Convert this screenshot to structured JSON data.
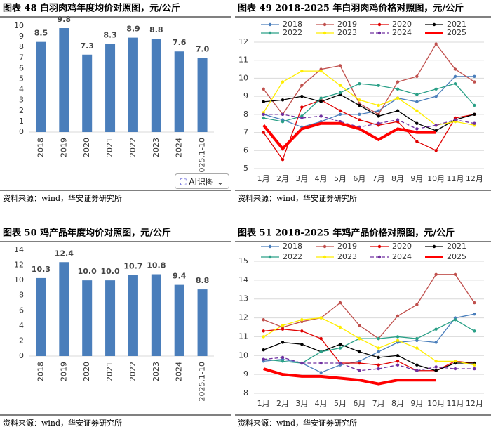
{
  "chart_data": [
    {
      "type": "bar",
      "title": "图表 48 白羽肉鸡年度均价对照图，元/公斤",
      "source": "资料来源：wind，华安证券研究所",
      "categories": [
        "2018",
        "2019",
        "2020",
        "2021",
        "2022",
        "2023",
        "2024",
        "2025.1-10"
      ],
      "values": [
        8.5,
        9.8,
        7.3,
        8.3,
        8.9,
        8.8,
        7.6,
        7.0
      ],
      "value_labels": [
        "8.5",
        "9.8",
        "7.3",
        "8.3",
        "8.9",
        "8.8",
        "7.6",
        "7.0"
      ],
      "color": "#4a7ebb",
      "ylim": [
        0,
        10
      ],
      "yticks": [
        0,
        1,
        2,
        3,
        4,
        5,
        6,
        7,
        8,
        9,
        10
      ],
      "grid": false
    },
    {
      "type": "line",
      "title": "图表 49 2018-2025 年白羽肉鸡价格对照图，元/公斤",
      "source": "资料来源：wind，华安证券研究所",
      "categories": [
        "1月",
        "2月",
        "3月",
        "4月",
        "5月",
        "6月",
        "7月",
        "8月",
        "9月",
        "10月",
        "11月",
        "12月"
      ],
      "ylim": [
        5,
        12
      ],
      "yticks": [
        5,
        6,
        7,
        8,
        9,
        10,
        11,
        12
      ],
      "grid": true,
      "series": [
        {
          "name": "2018",
          "color": "#4a7ebb",
          "marker": true,
          "values": [
            8.0,
            7.7,
            7.3,
            7.6,
            8.0,
            8.0,
            8.2,
            8.9,
            8.7,
            9.0,
            10.1,
            10.1
          ]
        },
        {
          "name": "2019",
          "color": "#c0504d",
          "marker": true,
          "values": [
            9.4,
            8.0,
            9.6,
            10.5,
            10.7,
            8.6,
            8.0,
            9.8,
            10.1,
            11.9,
            10.5,
            9.8
          ]
        },
        {
          "name": "2020",
          "color": "#e00000",
          "marker": true,
          "values": [
            7.0,
            5.5,
            8.4,
            8.8,
            8.2,
            7.7,
            7.4,
            7.6,
            6.5,
            6.0,
            7.8,
            8.0
          ]
        },
        {
          "name": "2021",
          "color": "#000000",
          "marker": true,
          "values": [
            8.7,
            8.8,
            9.0,
            8.7,
            9.1,
            8.5,
            7.9,
            8.2,
            7.5,
            7.1,
            7.7,
            8.0
          ]
        },
        {
          "name": "2022",
          "color": "#2aa087",
          "marker": true,
          "values": [
            7.8,
            7.6,
            7.9,
            8.9,
            9.2,
            9.7,
            9.6,
            9.4,
            9.1,
            9.4,
            9.7,
            8.5
          ]
        },
        {
          "name": "2023",
          "color": "#ffee00",
          "marker": true,
          "values": [
            8.1,
            9.8,
            10.4,
            10.4,
            9.6,
            8.8,
            8.5,
            8.9,
            8.2,
            7.4,
            7.6,
            7.4
          ]
        },
        {
          "name": "2024",
          "color": "#7030a0",
          "marker": true,
          "linestyle": "dashed",
          "values": [
            8.0,
            8.0,
            7.8,
            7.9,
            7.6,
            7.3,
            7.5,
            7.7,
            7.2,
            7.4,
            7.7,
            7.5
          ]
        },
        {
          "name": "2025",
          "color": "#ff0000",
          "marker": false,
          "linewidth": 4,
          "values": [
            7.4,
            6.1,
            7.2,
            7.5,
            7.5,
            7.2,
            6.6,
            7.2,
            7.0,
            7.0,
            null,
            null
          ]
        }
      ]
    },
    {
      "type": "bar",
      "title": "图表 50 鸡产品年度均价对照图，元/公斤",
      "source": "资料来源：wind，华安证券研究所",
      "categories": [
        "2018",
        "2019",
        "2020",
        "2021",
        "2022",
        "2023",
        "2024",
        "2025.1-10"
      ],
      "values": [
        10.3,
        12.4,
        10.0,
        10.0,
        10.7,
        10.8,
        9.4,
        8.8
      ],
      "value_labels": [
        "10.3",
        "12.4",
        "10.0",
        "10.0",
        "10.7",
        "10.8",
        "9.4",
        "8.8"
      ],
      "color": "#4a7ebb",
      "ylim": [
        0,
        14
      ],
      "yticks": [
        0,
        2,
        4,
        6,
        8,
        10,
        12,
        14
      ],
      "grid": false
    },
    {
      "type": "line",
      "title": "图表 51 2018-2025 年鸡产品价格对照图，元/公斤",
      "source": "资料来源：wind，华安证券研究所",
      "categories": [
        "1月",
        "2月",
        "3月",
        "4月",
        "5月",
        "6月",
        "7月",
        "8月",
        "9月",
        "10月",
        "11月",
        "12月"
      ],
      "ylim": [
        8,
        15
      ],
      "yticks": [
        8,
        9,
        10,
        11,
        12,
        13,
        14,
        15
      ],
      "grid": true,
      "series": [
        {
          "name": "2018",
          "color": "#4a7ebb",
          "marker": true,
          "values": [
            9.7,
            9.8,
            9.6,
            9.1,
            9.5,
            9.7,
            10.2,
            10.7,
            10.8,
            10.7,
            12.0,
            12.2
          ]
        },
        {
          "name": "2019",
          "color": "#c0504d",
          "marker": true,
          "values": [
            11.9,
            11.5,
            11.8,
            12.0,
            12.8,
            11.6,
            10.9,
            12.1,
            12.7,
            14.3,
            14.3,
            12.8
          ]
        },
        {
          "name": "2020",
          "color": "#e00000",
          "marker": true,
          "values": [
            11.3,
            11.4,
            11.3,
            10.9,
            9.6,
            9.6,
            9.5,
            9.7,
            9.2,
            9.2,
            9.7,
            9.6
          ]
        },
        {
          "name": "2021",
          "color": "#000000",
          "marker": true,
          "values": [
            10.3,
            10.7,
            10.6,
            10.2,
            10.6,
            10.2,
            9.9,
            10.0,
            9.5,
            9.2,
            9.6,
            9.6
          ]
        },
        {
          "name": "2022",
          "color": "#2aa087",
          "marker": true,
          "values": [
            9.8,
            9.7,
            9.6,
            10.2,
            10.4,
            10.9,
            10.9,
            11.0,
            10.9,
            11.4,
            11.9,
            11.3
          ]
        },
        {
          "name": "2023",
          "color": "#ffee00",
          "marker": true,
          "values": [
            11.0,
            11.6,
            11.9,
            12.0,
            11.5,
            10.9,
            10.4,
            10.8,
            10.4,
            9.7,
            9.7,
            9.5
          ]
        },
        {
          "name": "2024",
          "color": "#7030a0",
          "marker": true,
          "linestyle": "dashed",
          "values": [
            9.8,
            9.9,
            9.6,
            9.6,
            9.6,
            9.2,
            9.3,
            9.5,
            9.2,
            9.4,
            9.3,
            9.3
          ]
        },
        {
          "name": "2025",
          "color": "#ff0000",
          "marker": false,
          "linewidth": 4,
          "values": [
            9.3,
            9.0,
            8.9,
            8.9,
            8.8,
            8.7,
            8.5,
            8.7,
            8.7,
            8.7,
            null,
            null
          ]
        }
      ]
    }
  ],
  "ai_button": "AI识图"
}
